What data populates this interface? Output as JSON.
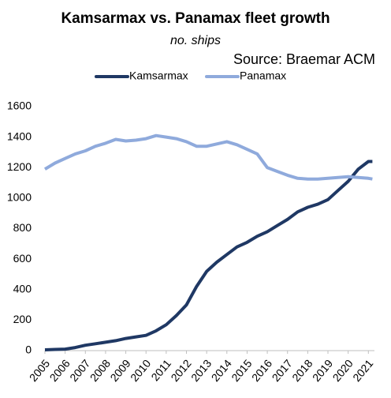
{
  "chart_data": {
    "type": "line",
    "title": "Kamsarmax vs. Panamax fleet growth",
    "subtitle": "no. ships",
    "source": "Source: Braemar ACM",
    "x": [
      2005,
      2005.5,
      2006,
      2006.5,
      2007,
      2007.5,
      2008,
      2008.5,
      2009,
      2009.5,
      2010,
      2010.5,
      2011,
      2011.5,
      2012,
      2012.5,
      2013,
      2013.5,
      2014,
      2014.5,
      2015,
      2015.5,
      2016,
      2016.5,
      2017,
      2017.5,
      2018,
      2018.5,
      2019,
      2019.5,
      2020,
      2020.5,
      2021,
      2021.2
    ],
    "series": [
      {
        "name": "Kamsarmax",
        "color": "#1f3864",
        "values": [
          5,
          8,
          10,
          20,
          35,
          45,
          55,
          65,
          80,
          90,
          100,
          130,
          170,
          230,
          300,
          420,
          520,
          580,
          630,
          680,
          710,
          750,
          780,
          820,
          860,
          910,
          940,
          960,
          990,
          1050,
          1110,
          1190,
          1240,
          1240
        ]
      },
      {
        "name": "Panamax",
        "color": "#8faadc",
        "values": [
          1190,
          1230,
          1260,
          1290,
          1310,
          1340,
          1360,
          1385,
          1375,
          1380,
          1390,
          1410,
          1400,
          1390,
          1370,
          1340,
          1340,
          1355,
          1370,
          1350,
          1320,
          1290,
          1200,
          1175,
          1150,
          1130,
          1125,
          1125,
          1130,
          1135,
          1140,
          1135,
          1130,
          1125
        ]
      }
    ],
    "xlim": [
      2005,
      2021.3
    ],
    "xticks": [
      2005,
      2006,
      2007,
      2008,
      2009,
      2010,
      2011,
      2012,
      2013,
      2014,
      2015,
      2016,
      2017,
      2018,
      2019,
      2020,
      2021
    ],
    "ylim": [
      0,
      1600
    ],
    "yticks": [
      0,
      200,
      400,
      600,
      800,
      1000,
      1200,
      1400,
      1600
    ],
    "grid": false,
    "legend": "top"
  }
}
